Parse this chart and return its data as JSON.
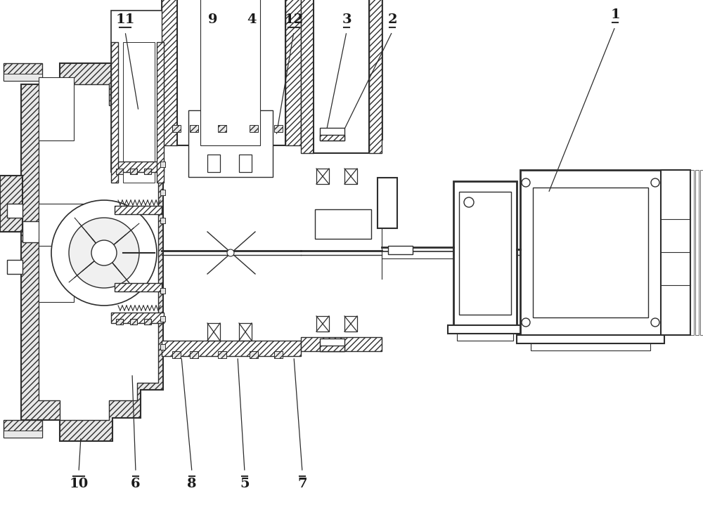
{
  "bg_color": "#ffffff",
  "line_color": "#2d2d2d",
  "figsize": [
    10.0,
    7.19
  ],
  "dpi": 100,
  "labels_top": [
    [
      "1",
      875,
      38,
      780,
      275
    ],
    [
      "2",
      558,
      45,
      483,
      198
    ],
    [
      "3",
      493,
      45,
      462,
      198
    ],
    [
      "4",
      358,
      45,
      318,
      188
    ],
    [
      "12",
      418,
      45,
      393,
      193
    ],
    [
      "9",
      303,
      45,
      283,
      253
    ],
    [
      "11",
      178,
      45,
      197,
      158
    ]
  ],
  "labels_bottom": [
    [
      "10",
      112,
      672,
      115,
      622
    ],
    [
      "6",
      193,
      672,
      188,
      532
    ],
    [
      "8",
      273,
      672,
      258,
      508
    ],
    [
      "5",
      348,
      672,
      338,
      508
    ],
    [
      "7",
      430,
      672,
      418,
      508
    ]
  ]
}
